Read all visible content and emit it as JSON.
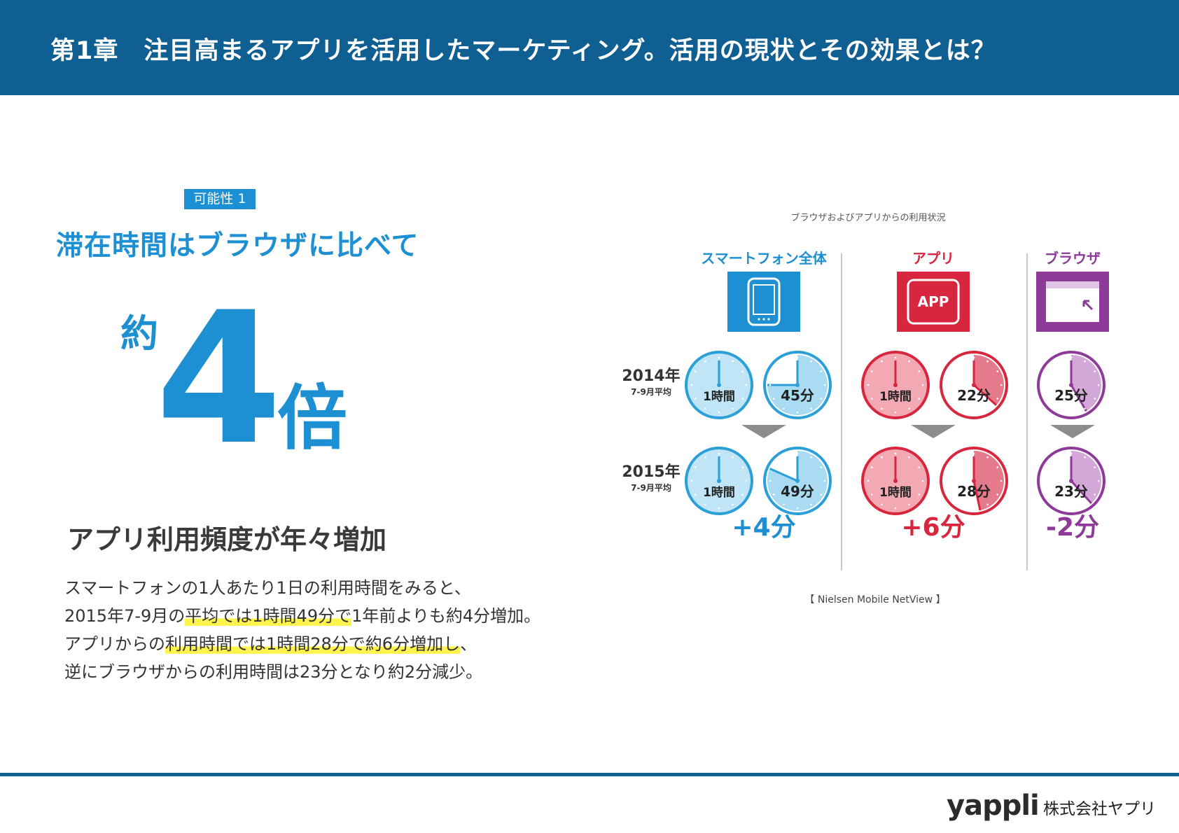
{
  "header": {
    "title": "第1章　注目高まるアプリを活用したマーケティング。活用の現状とその効果とは？"
  },
  "badge": "可能性 1",
  "headline": "滞在時間はブラウザに比べて",
  "big_number": {
    "prefix": "約",
    "number": "4",
    "suffix": "倍"
  },
  "subhead": "アプリ利用頻度が年々増加",
  "body": {
    "line1": "スマートフォンの1人あたり1日の利用時間をみると、",
    "line2_a": "2015年7-9月の",
    "line2_hl": "平均では1時間49分で",
    "line2_b": "1年前よりも約4分増加。",
    "line3_a": "アプリからの",
    "line3_hl": "利用時間では1時間28分で約6分増加し",
    "line3_b": "、",
    "line4": "逆にブラウザからの利用時間は23分となり約2分減少。"
  },
  "infographic": {
    "title": "ブラウザおよびアプリからの利用状況",
    "source": "【 Nielsen Mobile NetView 】",
    "app_icon_text": "APP",
    "rows": [
      {
        "year": "2014年",
        "period": "7-9月平均"
      },
      {
        "year": "2015年",
        "period": "7-9月平均"
      }
    ],
    "columns": [
      {
        "name": "スマートフォン全体",
        "color": "#1d8fd3",
        "clock_color": "#2a9fd8",
        "clock_fill": "#a9dcf3",
        "clock_bg": "#bfe5f6",
        "times": [
          [
            "1時間",
            "45分"
          ],
          [
            "1時間",
            "49分"
          ]
        ],
        "change": "+4分"
      },
      {
        "name": "アプリ",
        "color": "#d7263d",
        "clock_color": "#d7263d",
        "clock_fill": "#e47a8c",
        "clock_bg": "#f2a9b4",
        "times": [
          [
            "1時間",
            "22分"
          ],
          [
            "1時間",
            "28分"
          ]
        ],
        "change": "+6分"
      },
      {
        "name": "ブラウザ",
        "color": "#8e3a98",
        "clock_color": "#8e3a98",
        "clock_fill": "#d3a8d9",
        "clock_bg": "#ffffff",
        "times": [
          [
            "25分"
          ],
          [
            "23分"
          ]
        ],
        "change": "-2分"
      }
    ]
  },
  "footer": {
    "brand": "yappli",
    "company": "株式会社ヤプリ"
  }
}
